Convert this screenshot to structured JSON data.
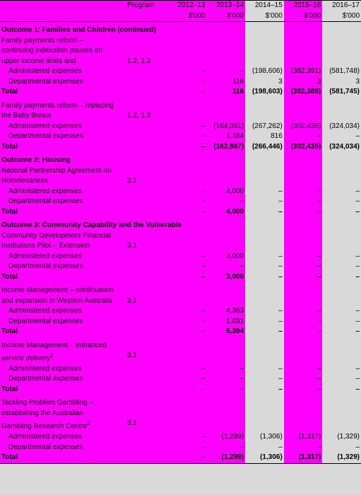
{
  "colors": {
    "highlight": "#ff00ff",
    "normal": "#d9d9d9",
    "text": "#000000"
  },
  "header": {
    "program": "Program",
    "years": [
      "2012–13",
      "2013–14",
      "2014–15",
      "2015–16",
      "2016–17"
    ],
    "unit": "$'000"
  },
  "outcome1": {
    "title": "Outcome 1: Families and Children (continued)",
    "item1": {
      "l1": "Family payments reform –",
      "l2": "continuing indexation pauses on",
      "l3": "upper income limits and",
      "prog": "1.2, 1.3",
      "admin_label": "Administered expenses",
      "admin": [
        "–",
        "–",
        "(198,606)",
        "(382,391)",
        "(581,748)"
      ],
      "dept_label": "Departmental expenses",
      "dept": [
        "–",
        "116",
        "3",
        "3",
        "3"
      ],
      "total_label": "Total",
      "total": [
        "–",
        "116",
        "(198,603)",
        "(382,388)",
        "(581,745)"
      ]
    },
    "item2": {
      "l1": "Family payments reform – replacing",
      "l2": "the Baby Bonus",
      "prog": "1.2, 1.3",
      "admin_label": "Administered expenses",
      "admin": [
        "–",
        "(164,051)",
        "(267,262)",
        "(302,435)",
        "(324,034)"
      ],
      "dept_label": "Departmental expenses",
      "dept": [
        "–",
        "1,184",
        "816",
        "–",
        "–"
      ],
      "total_label": "Total",
      "total": [
        "–",
        "(162,867)",
        "(266,446)",
        "(302,435)",
        "(324,034)"
      ]
    }
  },
  "outcome2": {
    "title": "Outcome 2: Housing",
    "item1": {
      "l1": "National Partnership Agreement on",
      "l2": "Homelessness",
      "prog": "2.1",
      "admin_label": "Administered expenses",
      "admin": [
        "–",
        "4,000",
        "–",
        "–",
        "–"
      ],
      "dept_label": "Departmental expenses",
      "dept": [
        "–",
        "–",
        "–",
        "–",
        "–"
      ],
      "total_label": "Total",
      "total": [
        "–",
        "4,000",
        "–",
        "–",
        "–"
      ]
    }
  },
  "outcome3": {
    "title": "Outcome 3: Community Capability and the Vulnerable",
    "item1": {
      "l1": "Community Development Financial",
      "l2": "Institutions Pilot – Extension",
      "prog": "3.1",
      "admin_label": "Administered expenses",
      "admin": [
        "–",
        "3,000",
        "–",
        "–",
        "–"
      ],
      "dept_label": "Departmental expenses",
      "dept": [
        "–",
        "–",
        "–",
        "–",
        "–"
      ],
      "total_label": "Total",
      "total": [
        "–",
        "3,000",
        "–",
        "–",
        "–"
      ]
    },
    "item2": {
      "l1": "Income Management – continuation",
      "l2": "and expansion in Western Australia",
      "prog": "3.1",
      "admin_label": "Administered expenses",
      "admin": [
        "–",
        "4,363",
        "–",
        "–",
        "–"
      ],
      "dept_label": "Departmental expenses",
      "dept": [
        "–",
        "1,031",
        "–",
        "–",
        "–"
      ],
      "total_label": "Total",
      "total": [
        "–",
        "5,394",
        "–",
        "–",
        "–"
      ]
    },
    "item3": {
      "l1": "Income Management – enhanced",
      "l2": "service delivery",
      "sup": "2",
      "prog": "3.1",
      "admin_label": "Administered expenses",
      "admin": [
        "–",
        "–",
        "–",
        "–",
        "–"
      ],
      "dept_label": "Departmental expenses",
      "dept": [
        "–",
        "–",
        "–",
        "–",
        "–"
      ],
      "total_label": "Total",
      "total": [
        "–",
        "–",
        "–",
        "–",
        "–"
      ]
    },
    "item4": {
      "l1": "Tackling Problem Gambling –",
      "l2": "establishing the Australian",
      "l3": "Gambling Research Centre",
      "sup": "2",
      "prog": "3.1",
      "admin_label": "Administered expenses",
      "admin": [
        "–",
        "(1,299)",
        "(1,306)",
        "(1,317)",
        "(1,329)"
      ],
      "dept_label": "Departmental expenses",
      "dept": [
        "–",
        "–",
        "–",
        "–",
        "–"
      ],
      "total_label": "Total",
      "total": [
        "–",
        "(1,299)",
        "(1,306)",
        "(1,317)",
        "(1,329)"
      ]
    }
  }
}
